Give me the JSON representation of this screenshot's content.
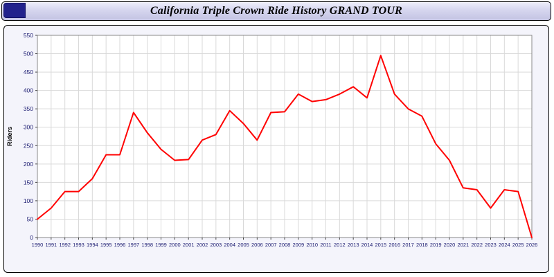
{
  "window": {
    "title": "California Triple Crown Ride History GRAND TOUR"
  },
  "chart_data": {
    "type": "line",
    "title": "California Triple Crown Ride History GRAND TOUR",
    "xlabel": "",
    "ylabel": "Riders",
    "ylim": [
      0,
      550
    ],
    "ytick_step": 50,
    "grid": true,
    "line_color": "#ff0000",
    "axis_text_color": "#1a1a70",
    "categories": [
      "1990",
      "1991",
      "1992",
      "1993",
      "1994",
      "1995",
      "1996",
      "1997",
      "1998",
      "1999",
      "2000",
      "2001",
      "2002",
      "2003",
      "2004",
      "2005",
      "2006",
      "2007",
      "2008",
      "2009",
      "2010",
      "2011",
      "2012",
      "2013",
      "2014",
      "2015",
      "2016",
      "2017",
      "2018",
      "2019",
      "2020",
      "2021",
      "2022",
      "2023",
      "2024",
      "2025",
      "2026"
    ],
    "series": [
      {
        "name": "Riders",
        "values": [
          50,
          80,
          125,
          125,
          160,
          225,
          225,
          340,
          285,
          240,
          210,
          212,
          265,
          280,
          345,
          310,
          265,
          340,
          342,
          390,
          370,
          375,
          390,
          410,
          380,
          495,
          390,
          350,
          330,
          255,
          210,
          135,
          130,
          80,
          130,
          125,
          0
        ]
      }
    ]
  }
}
